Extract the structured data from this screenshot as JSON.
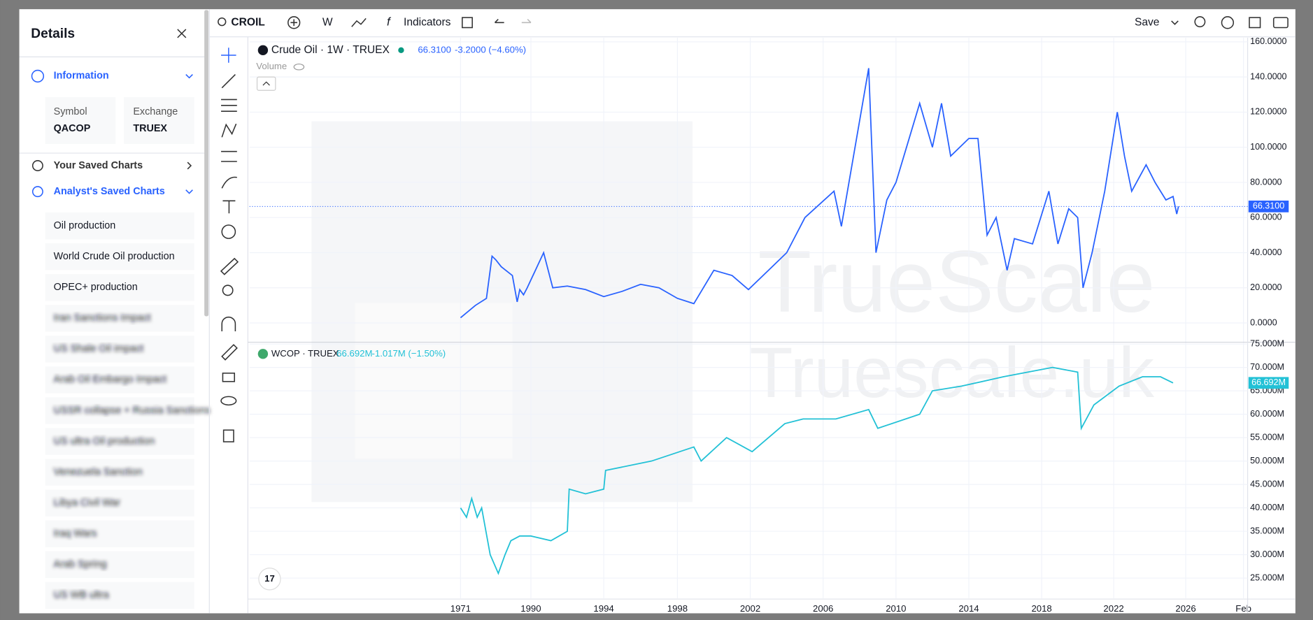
{
  "toolbar": {
    "symbol": "CROIL",
    "interval": "W",
    "indicators": "Indicators",
    "save": "Save"
  },
  "sidebar": {
    "title": "Details",
    "information": "Information",
    "symbol_label": "Symbol",
    "symbol": "QACOP",
    "exchange_label": "Exchange",
    "exchange": "TRUEX",
    "your_saved": "Your Saved Charts",
    "analyst_saved": "Analyst's Saved Charts",
    "items": [
      "Oil production",
      "World Crude Oil production",
      "OPEC+ production",
      "Iran Sanctions Impact",
      "US Shale Oil impact",
      "Arab Oil Embargo Impact",
      "USSR collapse + Russia Sanctions",
      "US ultra Oil production",
      "Venezuela Sanction",
      "Libya Civil War",
      "Iraq Wars",
      "Arab Spring",
      "US WB ultra"
    ]
  },
  "watermark": [
    "TrueScale",
    "Truescale.uk"
  ],
  "volume_label": "Volume",
  "chart_data": [
    {
      "type": "line",
      "title": "Crude Oil · 1W · TRUEX",
      "color": "#2962ff",
      "last_value_label": "66.3100",
      "change_label": "-3.2000 (−4.60%)",
      "x": [
        1971,
        1975,
        1978,
        1979.5,
        1980.5,
        1982,
        1985,
        1986.3,
        1987,
        1988,
        1989,
        1990.7,
        1991.2,
        1992,
        1993,
        1994,
        1995,
        1996,
        1997,
        1998,
        1998.9,
        2000,
        2001,
        2001.9,
        2003,
        2004,
        2005,
        2006.6,
        2007,
        2008.5,
        2008.9,
        2009.5,
        2010,
        2011.3,
        2012,
        2012.5,
        2013,
        2014,
        2014.5,
        2015,
        2015.5,
        2016.1,
        2016.5,
        2017.5,
        2018.4,
        2018.9,
        2019.5,
        2020,
        2020.3,
        2020.8,
        2021.5,
        2022.2,
        2022.6,
        2023,
        2023.8,
        2024.3,
        2024.9,
        2025.3,
        2025.5,
        2025.6
      ],
      "values": [
        3,
        10,
        14,
        38,
        36,
        32,
        27,
        12,
        19,
        16,
        20,
        40,
        20,
        21,
        19,
        15,
        18,
        22,
        20,
        14,
        11,
        30,
        27,
        19,
        30,
        40,
        60,
        75,
        55,
        145,
        40,
        70,
        80,
        125,
        100,
        125,
        95,
        105,
        105,
        50,
        60,
        30,
        48,
        45,
        75,
        45,
        65,
        60,
        20,
        40,
        75,
        120,
        95,
        75,
        90,
        80,
        70,
        72,
        62,
        66.31
      ],
      "ylim": [
        -10.5,
        162.4
      ],
      "yticks": [
        {
          "value": 160,
          "label": "160.0000"
        },
        {
          "value": 140,
          "label": "140.0000"
        },
        {
          "value": 120,
          "label": "120.0000"
        },
        {
          "value": 100,
          "label": "100.0000"
        },
        {
          "value": 80,
          "label": "80.0000"
        },
        {
          "value": 60,
          "label": "60.0000"
        },
        {
          "value": 40,
          "label": "40.0000"
        },
        {
          "value": 20,
          "label": "20.0000"
        },
        {
          "value": 0,
          "label": "0.0000"
        }
      ],
      "grid": true
    },
    {
      "type": "line",
      "title": "WCOP · TRUEX",
      "color": "#22c1d6",
      "last_value_label": "66.692M",
      "change_label": "-1.017M (−1.50%)",
      "x": [
        1971,
        1972.6,
        1974,
        1975.5,
        1976.7,
        1979,
        1981.2,
        1983,
        1984.6,
        1987,
        1990,
        1991.1,
        1992,
        1992.1,
        1993,
        1994,
        1994.1,
        1996.6,
        1998.9,
        1999.3,
        2000.7,
        2002.1,
        2003.9,
        2004.9,
        2006.7,
        2008.5,
        2009,
        2011.3,
        2012,
        2013.6,
        2015.9,
        2018.6,
        2020,
        2020.2,
        2020.9,
        2022.3,
        2023.6,
        2024.6,
        2025.3
      ],
      "values": [
        40,
        38,
        42,
        38,
        40,
        30,
        26,
        30,
        33,
        34,
        34,
        33,
        35,
        44,
        43,
        44,
        48,
        50,
        53,
        50,
        55,
        52,
        58,
        59,
        59,
        61,
        57,
        60,
        65,
        66,
        68,
        70,
        69,
        57,
        62,
        66,
        68,
        68,
        66.692
      ],
      "ylim": [
        20.7,
        75.2
      ],
      "yticks": [
        {
          "value": 75,
          "label": "75.000M"
        },
        {
          "value": 70,
          "label": "70.000M"
        },
        {
          "value": 65,
          "label": "65.000M"
        },
        {
          "value": 60,
          "label": "60.000M"
        },
        {
          "value": 55,
          "label": "55.000M"
        },
        {
          "value": 50,
          "label": "50.000M"
        },
        {
          "value": 45,
          "label": "45.000M"
        },
        {
          "value": 40,
          "label": "40.000M"
        },
        {
          "value": 35,
          "label": "35.000M"
        },
        {
          "value": 30,
          "label": "30.000M"
        },
        {
          "value": 25,
          "label": "25.000M"
        }
      ],
      "xlim": [
        1914,
        2029.4
      ],
      "xticks": [
        1971,
        1990,
        1994,
        1998,
        2002,
        2006,
        2010,
        2014,
        2018,
        2022,
        2026,
        {
          "value": 2029,
          "label": "Feb"
        }
      ],
      "grid": true
    }
  ]
}
